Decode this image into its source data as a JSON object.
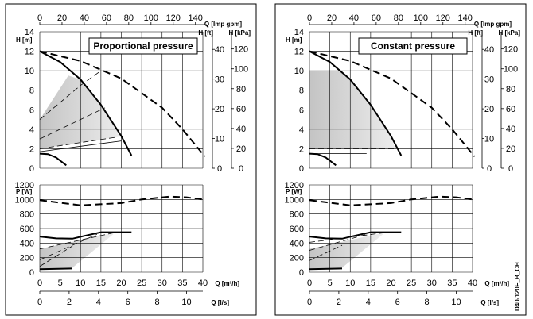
{
  "document_code": "D40-120F_B_CH",
  "chart_data": [
    {
      "type": "line",
      "title": "Proportional pressure",
      "head_axes": {
        "left_label": "H [m]",
        "left_range": [
          0,
          14
        ],
        "left_ticks": [
          0,
          2,
          4,
          6,
          8,
          10,
          12,
          14
        ],
        "top_label": "Q [Imp gpm]",
        "top_range": [
          0,
          150
        ],
        "top_ticks": [
          0,
          20,
          40,
          60,
          80,
          100,
          120,
          140
        ],
        "right1_label": "H [ft]",
        "right1_ticks": [
          0,
          10,
          20,
          30,
          40
        ],
        "right2_label": "H [kPa]",
        "right2_ticks": [
          0,
          20,
          40,
          60,
          80,
          100,
          120
        ],
        "grid": true
      },
      "power_axes": {
        "left_label": "P [W]",
        "left_range": [
          0,
          1200
        ],
        "left_ticks": [
          0,
          200,
          400,
          600,
          800,
          1000,
          1200
        ],
        "grid": true
      },
      "flow_axes": {
        "q_m3h_label": "Q [m³/h]",
        "q_m3h_range": [
          0,
          40
        ],
        "q_m3h_ticks": [
          0,
          5,
          10,
          15,
          20,
          25,
          30,
          35,
          40
        ],
        "q_ls_label": "Q [l/s]",
        "q_ls_ticks": [
          0,
          2,
          4,
          6,
          8,
          10
        ]
      },
      "head_series": [
        {
          "style": "solid-bold",
          "x": [
            0,
            5,
            10,
            15,
            20,
            22.5
          ],
          "y": [
            12,
            10.9,
            9.1,
            6.5,
            3.3,
            1.3
          ]
        },
        {
          "style": "dashed-bold",
          "x": [
            0,
            10,
            20,
            30,
            35,
            40.5
          ],
          "y": [
            12,
            11,
            9.2,
            6.2,
            4,
            1.2
          ]
        },
        {
          "style": "solid-bold",
          "x": [
            0,
            2,
            4,
            6.5
          ],
          "y": [
            1.5,
            1.45,
            1.1,
            0.3
          ]
        },
        {
          "style": "dashed-thin",
          "x": [
            0,
            10,
            15
          ],
          "y": [
            5,
            8.5,
            10
          ]
        },
        {
          "style": "dashed-thin",
          "x": [
            0,
            16
          ],
          "y": [
            3,
            6.2
          ]
        },
        {
          "style": "dashed-thin",
          "x": [
            0,
            19
          ],
          "y": [
            2,
            3.2
          ]
        },
        {
          "style": "solid-thin",
          "x": [
            0,
            20
          ],
          "y": [
            1.7,
            2.8
          ]
        }
      ],
      "power_series": [
        {
          "style": "dashed-bold",
          "x": [
            0,
            10,
            20,
            25,
            32,
            36,
            40
          ],
          "y": [
            990,
            920,
            950,
            1000,
            1040,
            1030,
            1000
          ]
        },
        {
          "style": "solid-bold",
          "x": [
            0,
            4,
            8,
            11,
            15,
            22.5
          ],
          "y": [
            490,
            465,
            460,
            500,
            550,
            550
          ]
        },
        {
          "style": "solid-bold",
          "x": [
            0,
            8
          ],
          "y": [
            40,
            50
          ]
        },
        {
          "style": "dashed-thin",
          "x": [
            0,
            18
          ],
          "y": [
            320,
            540
          ]
        },
        {
          "style": "dashed-thin",
          "x": [
            0,
            14
          ],
          "y": [
            170,
            520
          ]
        },
        {
          "style": "dashed-thin",
          "x": [
            0,
            8
          ],
          "y": [
            80,
            360
          ]
        }
      ]
    },
    {
      "type": "line",
      "title": "Constant pressure",
      "head_axes": {
        "left_label": "H [m]",
        "left_range": [
          0,
          14
        ],
        "left_ticks": [
          0,
          2,
          4,
          6,
          8,
          10,
          12,
          14
        ],
        "top_label": "Q [Imp gpm]",
        "top_range": [
          0,
          150
        ],
        "top_ticks": [
          0,
          20,
          40,
          60,
          80,
          100,
          120,
          140
        ],
        "right1_label": "H [ft]",
        "right1_ticks": [
          0,
          10,
          20,
          30,
          40
        ],
        "right2_label": "H [kPa]",
        "right2_ticks": [
          0,
          20,
          40,
          60,
          80,
          100,
          120
        ],
        "grid": true
      },
      "power_axes": {
        "left_label": "P [W]",
        "left_range": [
          0,
          1200
        ],
        "left_ticks": [
          0,
          200,
          400,
          600,
          800,
          1000,
          1200
        ],
        "grid": true
      },
      "flow_axes": {
        "q_m3h_label": "Q [m³/h]",
        "q_m3h_range": [
          0,
          40
        ],
        "q_m3h_ticks": [
          0,
          5,
          10,
          15,
          20,
          25,
          30,
          35,
          40
        ],
        "q_ls_label": "Q [l/s]",
        "q_ls_ticks": [
          0,
          2,
          4,
          6,
          8,
          10
        ]
      },
      "head_series": [
        {
          "style": "solid-bold",
          "x": [
            0,
            5,
            10,
            15,
            20,
            22.5
          ],
          "y": [
            12,
            10.9,
            9.1,
            6.5,
            3.3,
            1.3
          ]
        },
        {
          "style": "dashed-bold",
          "x": [
            0,
            10,
            20,
            30,
            35,
            40.5
          ],
          "y": [
            12,
            11,
            9.2,
            6.2,
            4,
            1.2
          ]
        },
        {
          "style": "solid-bold",
          "x": [
            0,
            2,
            4,
            6.5
          ],
          "y": [
            1.5,
            1.45,
            1.1,
            0.3
          ]
        },
        {
          "style": "dashed-thin",
          "x": [
            0,
            21
          ],
          "y": [
            2,
            2
          ]
        },
        {
          "style": "solid-thin",
          "x": [
            0,
            14
          ],
          "y": [
            1.5,
            1.5
          ]
        }
      ],
      "power_series": [
        {
          "style": "dashed-bold",
          "x": [
            0,
            10,
            20,
            25,
            32,
            36,
            40
          ],
          "y": [
            990,
            920,
            950,
            1000,
            1040,
            1030,
            1000
          ]
        },
        {
          "style": "solid-bold",
          "x": [
            0,
            4,
            8,
            11,
            15,
            22.5
          ],
          "y": [
            490,
            465,
            460,
            500,
            550,
            550
          ]
        },
        {
          "style": "solid-bold",
          "x": [
            0,
            8
          ],
          "y": [
            40,
            50
          ]
        },
        {
          "style": "dashed-thin",
          "x": [
            0,
            18
          ],
          "y": [
            410,
            540
          ]
        },
        {
          "style": "dashed-thin",
          "x": [
            0,
            14
          ],
          "y": [
            300,
            520
          ]
        },
        {
          "style": "dashed-thin",
          "x": [
            0,
            8
          ],
          "y": [
            160,
            370
          ]
        }
      ]
    }
  ]
}
